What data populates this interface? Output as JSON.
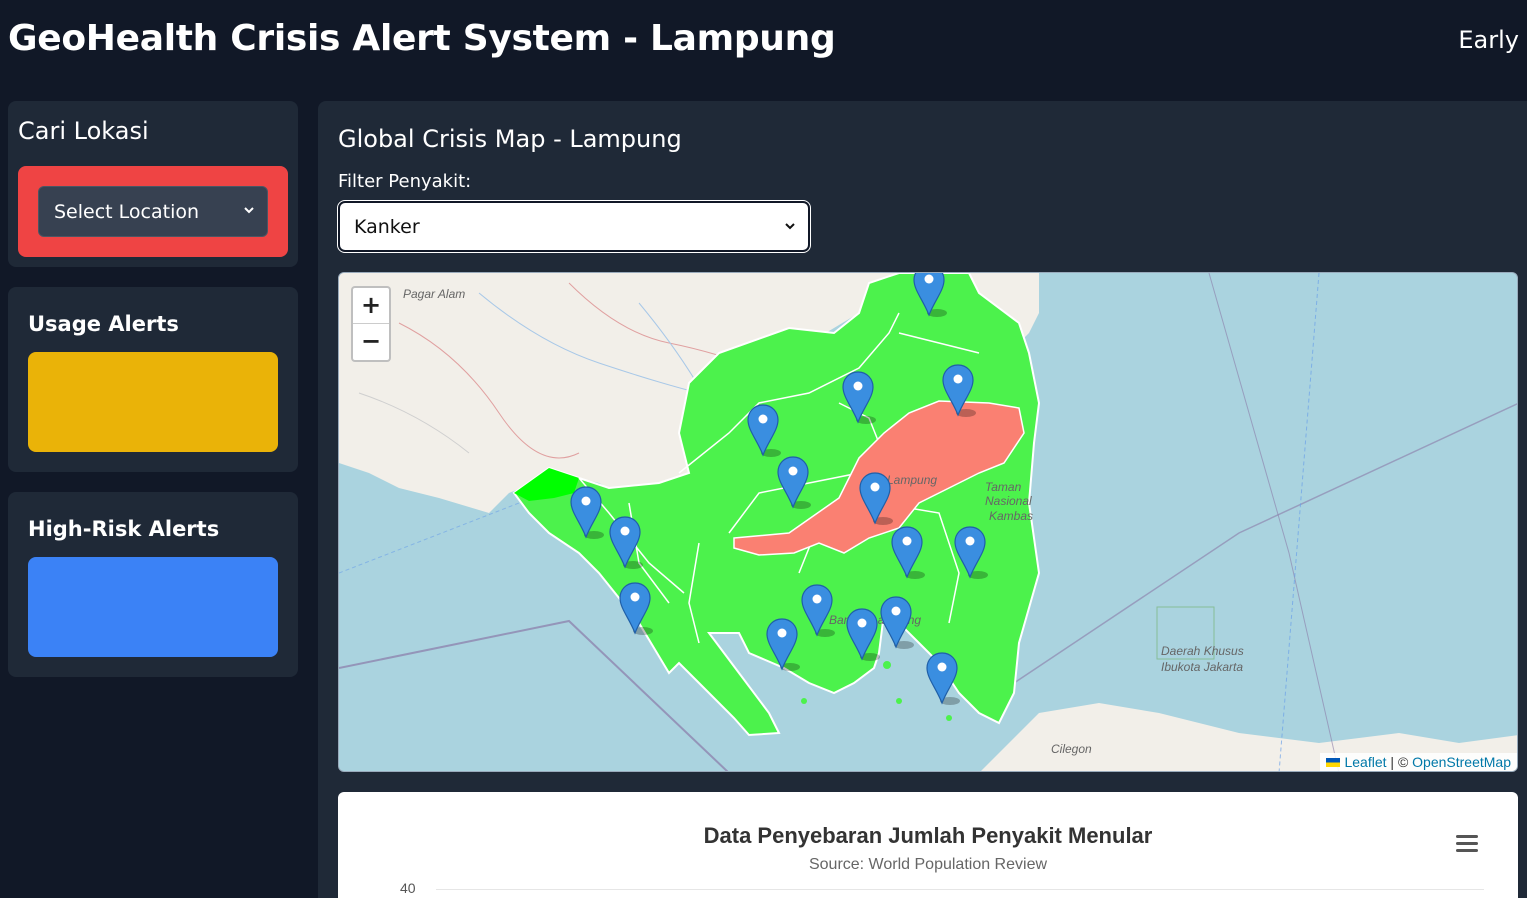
{
  "header": {
    "title": "GeoHealth Crisis Alert System - Lampung",
    "right_text": "Early"
  },
  "sidebar": {
    "search": {
      "title": "Cari Lokasi",
      "select_value": "Select Location"
    },
    "usage_alerts": {
      "title": "Usage Alerts"
    },
    "high_risk_alerts": {
      "title": "High-Risk Alerts"
    }
  },
  "main": {
    "map_title": "Global Crisis Map - Lampung",
    "filter_label": "Filter Penyakit:",
    "filter_value": "Kanker",
    "map": {
      "zoom_in": "+",
      "zoom_out": "−",
      "attribution_leaflet": "Leaflet",
      "attribution_sep": " | © ",
      "attribution_osm": "OpenStreetMap",
      "labels": {
        "pagar_alam": "Pagar Alam",
        "cilegon": "Cilegon",
        "jakarta_1": "Daerah Khusus",
        "jakarta_2": "Ibukota Jakarta",
        "lampung": "Lampung",
        "bandar": "Bandar Lampung",
        "taman_1": "Taman",
        "taman_2": "Nasional",
        "taman_3": "Kambas"
      }
    },
    "chart": {
      "title": "Data Penyebaran Jumlah Penyakit Menular",
      "subtitle": "Source: World Population Review",
      "y_tick_top": "40"
    }
  },
  "colors": {
    "accent_red": "#ef4444",
    "accent_yellow": "#eab308",
    "accent_blue": "#3b82f6",
    "region_green": "#4cf24c",
    "region_highlight": "#fa8072"
  }
}
